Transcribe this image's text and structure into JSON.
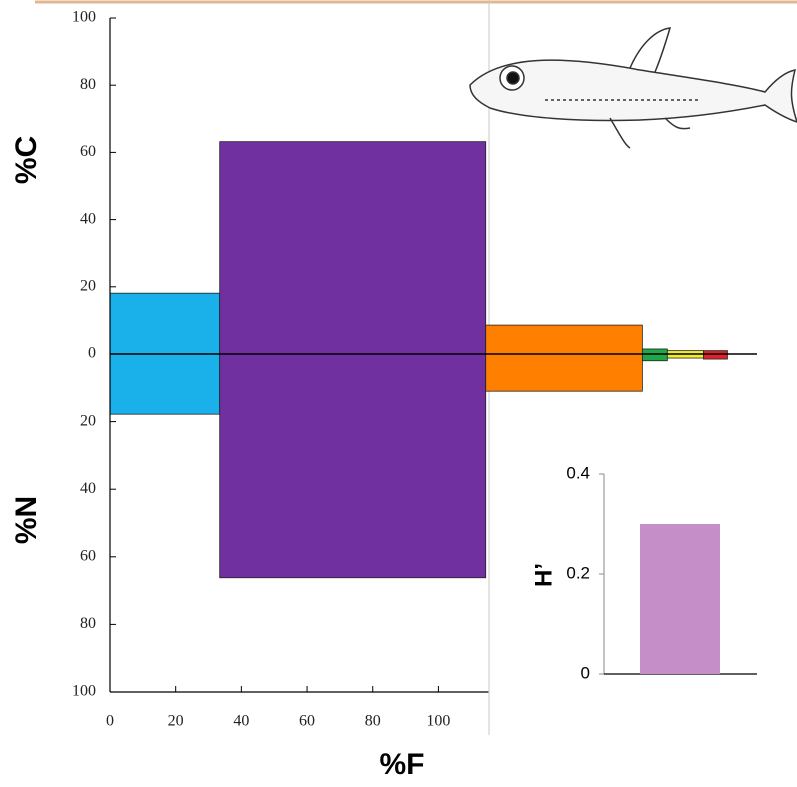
{
  "chart_data": [
    {
      "type": "costello",
      "x_label": "%F",
      "upper_label": "%C",
      "lower_label": "%N",
      "xlim": [
        0,
        197
      ],
      "xticks": [
        0,
        20,
        40,
        60,
        80,
        100
      ],
      "upper_lim": [
        0,
        100
      ],
      "upper_ticks": [
        0,
        20,
        40,
        60,
        80,
        100
      ],
      "lower_lim": [
        0,
        100
      ],
      "lower_ticks": [
        20,
        40,
        60,
        80,
        100
      ],
      "series": [
        {
          "color": "#1ab0ea",
          "f": 33.4,
          "c": 18.1,
          "n": 17.8
        },
        {
          "color": "#7030a0",
          "f": 81,
          "c": 63.2,
          "n": 66.2
        },
        {
          "color": "#ff7f00",
          "f": 47.7,
          "c": 8.6,
          "n": 11
        },
        {
          "color": "#1fa84a",
          "f": 7.6,
          "c": 1.5,
          "n": 2
        },
        {
          "color": "#f2ec28",
          "f": 11,
          "c": 1,
          "n": 1.2
        },
        {
          "color": "#e0202a",
          "f": 7.3,
          "c": 1,
          "n": 1.5
        }
      ]
    },
    {
      "type": "bar",
      "y_label": "H’",
      "values": [
        0.3
      ],
      "color": "#c58ec8",
      "ylim": [
        0,
        0.4
      ],
      "yticks": [
        0,
        0.2,
        0.4
      ]
    }
  ]
}
